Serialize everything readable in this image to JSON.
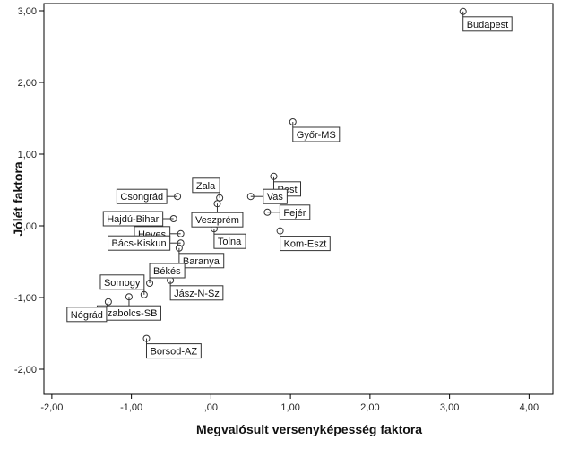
{
  "chart_data": {
    "type": "scatter",
    "xlabel": "Megvalósult versenyképesség faktora",
    "ylabel": "Jólét faktora",
    "xlim": [
      -2.1,
      4.3
    ],
    "ylim": [
      -2.35,
      3.1
    ],
    "x_ticks": [
      -2,
      -1,
      0,
      1,
      2,
      3,
      4
    ],
    "y_ticks": [
      -2,
      -1,
      0,
      1,
      2,
      3
    ],
    "x_tick_labels": [
      "-2,00",
      "-1,00",
      ",00",
      "1,00",
      "2,00",
      "3,00",
      "4,00"
    ],
    "y_tick_labels": [
      "-2,00",
      "-1,00",
      ",00",
      "1,00",
      "2,00",
      "3,00"
    ],
    "grid": false,
    "legend": "none",
    "colors": {
      "background": "#ffffff",
      "marker_fill": "#ffffff",
      "marker_stroke": "#333333",
      "frame": "#000000"
    },
    "points": [
      {
        "name": "Budapest",
        "x": 3.17,
        "y": 2.99,
        "label_side": "below-right"
      },
      {
        "name": "Győr-MS",
        "x": 1.03,
        "y": 1.45,
        "label_side": "below-right"
      },
      {
        "name": "Pest",
        "x": 0.79,
        "y": 0.69,
        "label_side": "below-right"
      },
      {
        "name": "Vas",
        "x": 0.5,
        "y": 0.41,
        "label_side": "right"
      },
      {
        "name": "Fejér",
        "x": 0.71,
        "y": 0.19,
        "label_side": "right"
      },
      {
        "name": "Kom-Eszt",
        "x": 0.87,
        "y": -0.07,
        "label_side": "below-right"
      },
      {
        "name": "Zala",
        "x": 0.11,
        "y": 0.39,
        "label_side": "above-left"
      },
      {
        "name": "Veszprém",
        "x": 0.08,
        "y": 0.31,
        "label_side": "below"
      },
      {
        "name": "Tolna",
        "x": 0.04,
        "y": -0.04,
        "label_side": "below-right"
      },
      {
        "name": "Csongrád",
        "x": -0.42,
        "y": 0.41,
        "label_side": "left"
      },
      {
        "name": "Hajdú-Bihar",
        "x": -0.47,
        "y": 0.1,
        "label_side": "left"
      },
      {
        "name": "Heves",
        "x": -0.38,
        "y": -0.11,
        "label_side": "left"
      },
      {
        "name": "Bács-Kiskun",
        "x": -0.38,
        "y": -0.24,
        "label_side": "left"
      },
      {
        "name": "Baranya",
        "x": -0.4,
        "y": -0.31,
        "label_side": "below-right"
      },
      {
        "name": "Békés",
        "x": -0.77,
        "y": -0.8,
        "label_side": "above-right"
      },
      {
        "name": "Somogy",
        "x": -0.84,
        "y": -0.96,
        "label_side": "above-left"
      },
      {
        "name": "Jász-N-Sz",
        "x": -0.51,
        "y": -0.76,
        "label_side": "below-right"
      },
      {
        "name": "Szabolcs-SB",
        "x": -1.03,
        "y": -0.99,
        "label_side": "below"
      },
      {
        "name": "Nógrád",
        "x": -1.29,
        "y": -1.06,
        "label_side": "below-left"
      },
      {
        "name": "Borsod-AZ",
        "x": -0.81,
        "y": -1.57,
        "label_side": "below-right"
      }
    ]
  }
}
